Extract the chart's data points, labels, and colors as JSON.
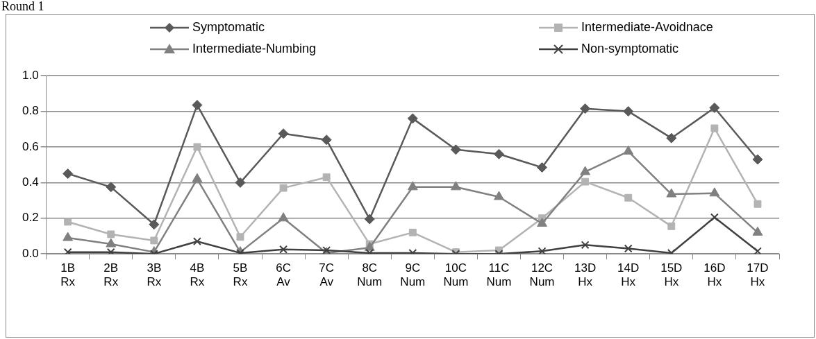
{
  "chart_data": {
    "type": "line",
    "title": "Round 1",
    "categories": [
      "1B Rx",
      "2B Rx",
      "3B Rx",
      "4B Rx",
      "5B Rx",
      "6C Av",
      "7C Av",
      "8C Num",
      "9C Num",
      "10C Num",
      "11C Num",
      "12C Num",
      "13D Hx",
      "14D Hx",
      "15D Hx",
      "16D Hx",
      "17D Hx"
    ],
    "series": [
      {
        "name": "Symptomatic",
        "color": "#595959",
        "marker": "diamond",
        "values": [
          0.45,
          0.375,
          0.165,
          0.835,
          0.4,
          0.675,
          0.64,
          0.195,
          0.76,
          0.585,
          0.56,
          0.485,
          0.815,
          0.8,
          0.65,
          0.82,
          0.53
        ]
      },
      {
        "name": "Intermediate-Avoidnace",
        "color": "#b3b3b3",
        "marker": "square",
        "values": [
          0.18,
          0.11,
          0.075,
          0.6,
          0.095,
          0.37,
          0.43,
          0.055,
          0.12,
          0.01,
          0.02,
          0.2,
          0.405,
          0.315,
          0.155,
          0.705,
          0.28
        ]
      },
      {
        "name": "Intermediate-Numbing",
        "color": "#808080",
        "marker": "triangle",
        "values": [
          0.09,
          0.055,
          0.01,
          0.42,
          0.01,
          0.2,
          0.005,
          0.035,
          0.375,
          0.375,
          0.32,
          0.17,
          0.46,
          0.575,
          0.335,
          0.34,
          0.12
        ]
      },
      {
        "name": "Non-symptomatic",
        "color": "#404040",
        "marker": "cross",
        "values": [
          0.01,
          0.01,
          0,
          0.07,
          0.005,
          0.025,
          0.02,
          0.005,
          0.005,
          0,
          0,
          0.015,
          0.05,
          0.03,
          0.005,
          0.205,
          0.015
        ]
      }
    ],
    "ylim": [
      0,
      1
    ],
    "yticks": [
      {
        "value": 0,
        "label": "0.0"
      },
      {
        "value": 0.2,
        "label": "0.2"
      },
      {
        "value": 0.4,
        "label": "0.4"
      },
      {
        "value": 0.6,
        "label": "0.6"
      },
      {
        "value": 0.8,
        "label": "0.8"
      },
      {
        "value": 1,
        "label": "1.0"
      }
    ],
    "grid": "y",
    "legend": "top",
    "line_style": "solid"
  }
}
